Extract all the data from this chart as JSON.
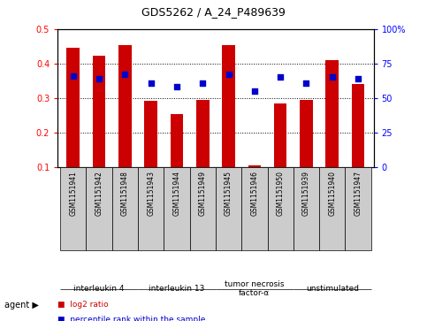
{
  "title": "GDS5262 / A_24_P489639",
  "samples": [
    "GSM1151941",
    "GSM1151942",
    "GSM1151948",
    "GSM1151943",
    "GSM1151944",
    "GSM1151949",
    "GSM1151945",
    "GSM1151946",
    "GSM1151950",
    "GSM1151939",
    "GSM1151940",
    "GSM1151947"
  ],
  "log2_ratio": [
    0.445,
    0.423,
    0.452,
    0.292,
    0.254,
    0.295,
    0.452,
    0.105,
    0.285,
    0.293,
    0.41,
    0.34
  ],
  "percentile_rank": [
    66,
    64,
    67,
    61,
    58,
    61,
    67,
    55,
    65,
    61,
    65,
    64
  ],
  "agents": [
    {
      "label": "interleukin 4",
      "samples": [
        0,
        1,
        2
      ],
      "color": "#ccffcc"
    },
    {
      "label": "interleukin 13",
      "samples": [
        3,
        4,
        5
      ],
      "color": "#99ee99"
    },
    {
      "label": "tumor necrosis\nfactor-α",
      "samples": [
        6,
        7,
        8
      ],
      "color": "#55cc55"
    },
    {
      "label": "unstimulated",
      "samples": [
        9,
        10,
        11
      ],
      "color": "#44cc44"
    }
  ],
  "ylim_left": [
    0.1,
    0.5
  ],
  "ylim_right": [
    0,
    100
  ],
  "yticks_left": [
    0.1,
    0.2,
    0.3,
    0.4,
    0.5
  ],
  "yticks_right": [
    0,
    25,
    50,
    75,
    100
  ],
  "bar_color": "#cc0000",
  "dot_color": "#0000cc",
  "bar_width": 0.5,
  "bg_color": "#ffffff",
  "tick_area_color": "#cccccc",
  "legend_items": [
    {
      "label": "log2 ratio",
      "color": "#cc0000"
    },
    {
      "label": "percentile rank within the sample",
      "color": "#0000cc"
    }
  ]
}
